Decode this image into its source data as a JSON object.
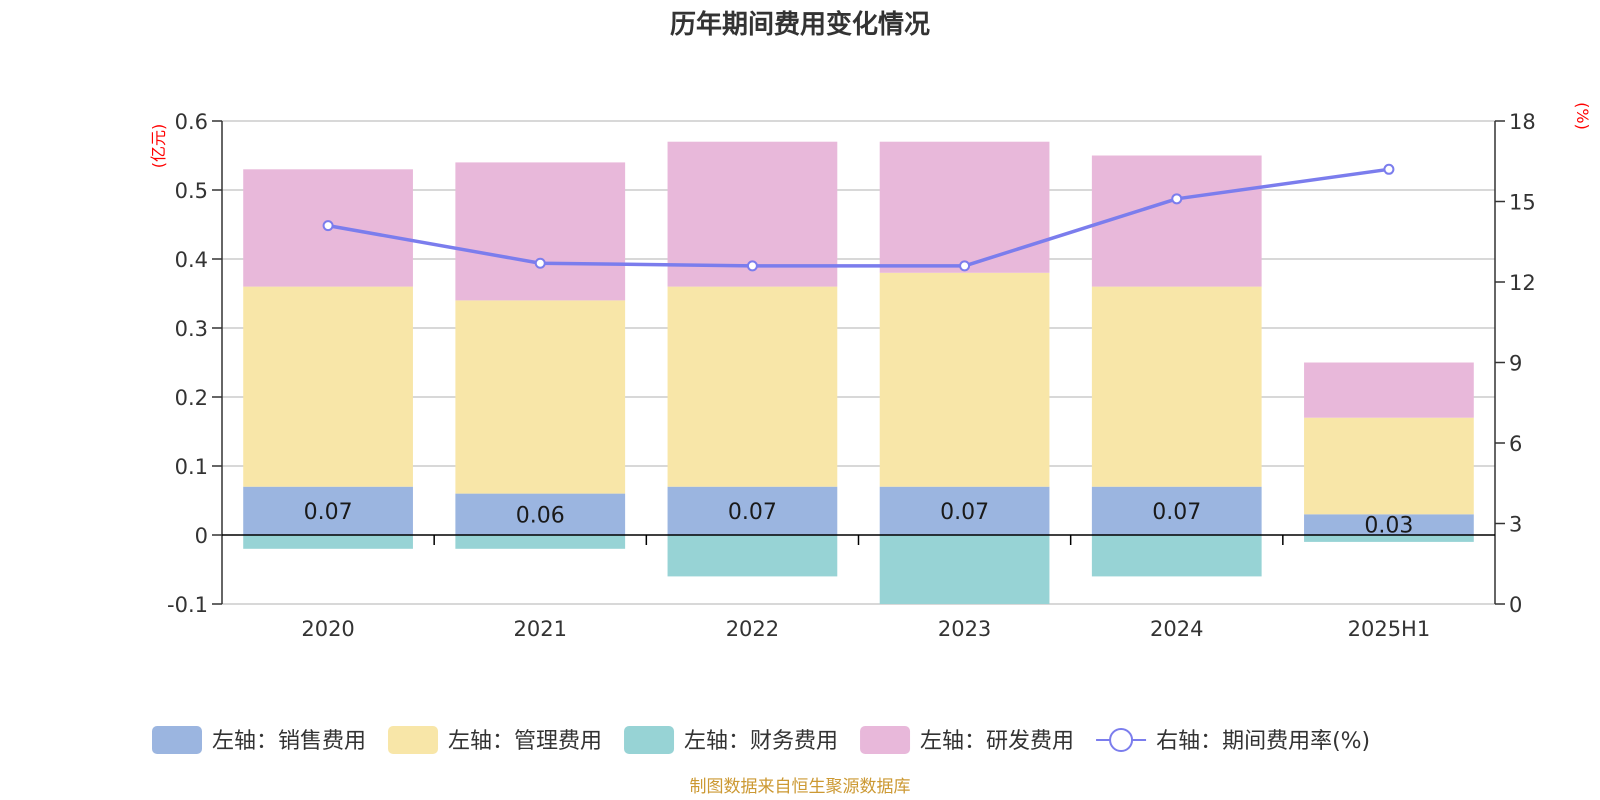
{
  "chart_data": {
    "type": "bar",
    "title": "历年期间费用变化情况",
    "categories": [
      "2020",
      "2021",
      "2022",
      "2023",
      "2024",
      "2025H1"
    ],
    "left_axis": {
      "unit_label": "(亿元)",
      "min": -0.1,
      "max": 0.6,
      "ticks": [
        -0.1,
        0,
        0.1,
        0.2,
        0.3,
        0.4,
        0.5,
        0.6
      ],
      "tick_labels": [
        "-0.1",
        "0",
        "0.1",
        "0.2",
        "0.3",
        "0.4",
        "0.5",
        "0.6"
      ]
    },
    "right_axis": {
      "unit_label": "(%)",
      "min": 0,
      "max": 18,
      "ticks": [
        0,
        3,
        6,
        9,
        12,
        15,
        18
      ],
      "tick_labels": [
        "0",
        "3",
        "6",
        "9",
        "12",
        "15",
        "18"
      ]
    },
    "series": [
      {
        "name": "左轴：销售费用",
        "axis": "left",
        "stack": "cost",
        "color": "#9bb5e0",
        "values": [
          0.07,
          0.06,
          0.07,
          0.07,
          0.07,
          0.03
        ],
        "data_labels": [
          "0.07",
          "0.06",
          "0.07",
          "0.07",
          "0.07",
          "0.03"
        ]
      },
      {
        "name": "左轴：管理费用",
        "axis": "left",
        "stack": "cost",
        "color": "#f8e6a8",
        "values": [
          0.29,
          0.28,
          0.29,
          0.31,
          0.29,
          0.14
        ]
      },
      {
        "name": "左轴：财务费用",
        "axis": "left",
        "stack": "cost",
        "color": "#97d3d5",
        "values": [
          -0.02,
          -0.02,
          -0.06,
          -0.1,
          -0.06,
          -0.01
        ]
      },
      {
        "name": "左轴：研发费用",
        "axis": "left",
        "stack": "cost",
        "color": "#e8b8da",
        "values": [
          0.17,
          0.2,
          0.21,
          0.19,
          0.19,
          0.08
        ]
      },
      {
        "name": "右轴：期间费用率(%)",
        "axis": "right",
        "type": "line",
        "color": "#7b7ded",
        "values": [
          14.1,
          12.7,
          12.6,
          12.6,
          15.1,
          16.2
        ]
      }
    ],
    "grid": true,
    "legend_position": "bottom"
  },
  "source_note": "制图数据来自恒生聚源数据库",
  "colors": {
    "axis_unit": "#ff0000",
    "source_note": "#cc9933",
    "grid": "#cccccc",
    "axis": "#333333"
  }
}
